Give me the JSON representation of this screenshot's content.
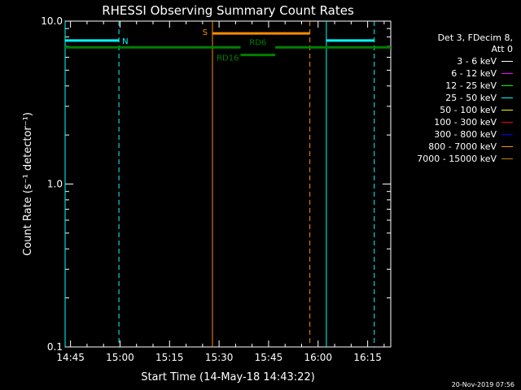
{
  "chart_data": {
    "type": "line",
    "title": "RHESSI Observing Summary Count Rates",
    "xlabel": "Start Time (14-May-18 14:43:22)",
    "ylabel": "Count Rate (s⁻¹ detector⁻¹)",
    "y_scale": "log",
    "ylim": [
      0.1,
      10.0
    ],
    "xlim": [
      "14:43:22",
      "16:22:00"
    ],
    "x_ticks": [
      "14:45",
      "15:00",
      "15:15",
      "15:30",
      "15:45",
      "16:00",
      "16:15"
    ],
    "y_ticks": [
      "0.1",
      "1.0",
      "10.0"
    ],
    "grid": false,
    "legend_position": "right",
    "legend_header": [
      "Det 3, FDecim 8,",
      "Att 0"
    ],
    "series": [
      {
        "name": "3 - 6 keV",
        "color": "#ffffff",
        "values": []
      },
      {
        "name": "6 - 12 keV",
        "color": "#ff00ff",
        "values": []
      },
      {
        "name": "12 - 25 keV",
        "color": "#00ff00",
        "values": []
      },
      {
        "name": "25 - 50 keV",
        "color": "#00ffff",
        "values": []
      },
      {
        "name": "50 - 100 keV",
        "color": "#ffff00",
        "values": []
      },
      {
        "name": "100 - 300 keV",
        "color": "#ff0000",
        "values": []
      },
      {
        "name": "300 - 800 keV",
        "color": "#0000ff",
        "values": []
      },
      {
        "name": "800 - 7000 keV",
        "color": "#ff8c00",
        "values": []
      },
      {
        "name": "7000 - 15000 keV",
        "color": "#b8860b",
        "values": []
      }
    ],
    "annotations": [
      {
        "label": "N",
        "color": "#00ffff",
        "row": 7.6,
        "segments": [
          [
            "14:43:22",
            "14:59:40"
          ],
          [
            "16:02:30",
            "16:17:00"
          ]
        ]
      },
      {
        "label": "S",
        "color": "#ff8c00",
        "row": 8.4,
        "segments": [
          [
            "15:28:00",
            "15:57:30"
          ]
        ]
      },
      {
        "label": "RD6",
        "color": "#008000",
        "row": 6.9,
        "segments": [
          [
            "14:43:22",
            "15:36:30"
          ],
          [
            "15:47:00",
            "16:22:00"
          ]
        ]
      },
      {
        "label": "RD16",
        "color": "#008000",
        "row": 6.2,
        "segments": [
          [
            "15:36:30",
            "15:47:00"
          ]
        ]
      }
    ],
    "vertical_markers": [
      {
        "time": "14:43:22",
        "color": "#00ffff",
        "style": "solid"
      },
      {
        "time": "14:59:40",
        "color": "#00ffff",
        "style": "dashed"
      },
      {
        "time": "15:28:00",
        "color": "#ff8c00",
        "style": "solid"
      },
      {
        "time": "15:57:30",
        "color": "#ff8c00",
        "style": "dashed"
      },
      {
        "time": "16:02:30",
        "color": "#00ffff",
        "style": "solid"
      },
      {
        "time": "16:17:00",
        "color": "#00ffff",
        "style": "dashed"
      }
    ]
  },
  "timestamp": "20-Nov-2019 07:56"
}
